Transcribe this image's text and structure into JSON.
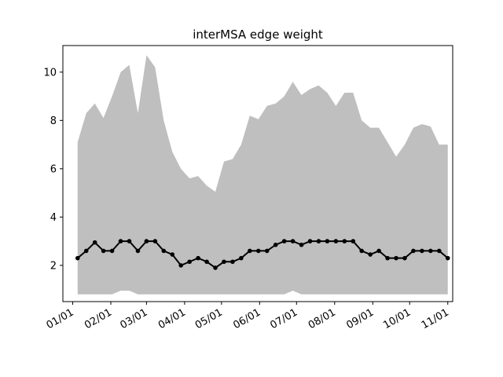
{
  "chart_data": {
    "type": "area",
    "title": "interMSA edge weight",
    "xlabel": "",
    "ylabel": "",
    "x_tick_labels": [
      "01/01",
      "02/01",
      "03/01",
      "04/01",
      "05/01",
      "06/01",
      "07/01",
      "08/01",
      "09/01",
      "10/01",
      "11/01"
    ],
    "x_tick_dates": [
      "2020-01-01",
      "2020-02-01",
      "2020-03-01",
      "2020-04-01",
      "2020-05-01",
      "2020-06-01",
      "2020-07-01",
      "2020-08-01",
      "2020-09-01",
      "2020-10-01",
      "2020-11-01"
    ],
    "xlim": [
      "2019-12-24",
      "2020-11-05"
    ],
    "y_ticks": [
      2,
      4,
      6,
      8,
      10
    ],
    "ylim": [
      0.5,
      11.1
    ],
    "grid": false,
    "x": [
      "2020-01-05",
      "2020-01-12",
      "2020-01-19",
      "2020-01-26",
      "2020-02-02",
      "2020-02-09",
      "2020-02-16",
      "2020-02-23",
      "2020-03-01",
      "2020-03-08",
      "2020-03-15",
      "2020-03-22",
      "2020-03-29",
      "2020-04-05",
      "2020-04-12",
      "2020-04-19",
      "2020-04-26",
      "2020-05-03",
      "2020-05-10",
      "2020-05-17",
      "2020-05-24",
      "2020-05-31",
      "2020-06-07",
      "2020-06-14",
      "2020-06-21",
      "2020-06-28",
      "2020-07-05",
      "2020-07-12",
      "2020-07-19",
      "2020-07-26",
      "2020-08-02",
      "2020-08-09",
      "2020-08-16",
      "2020-08-23",
      "2020-08-30",
      "2020-09-06",
      "2020-09-13",
      "2020-09-20",
      "2020-09-27",
      "2020-10-04",
      "2020-10-11",
      "2020-10-18",
      "2020-10-25",
      "2020-11-01"
    ],
    "series": [
      {
        "role": "range",
        "color": "#bfbfbf",
        "upper": [
          7.1,
          8.3,
          8.7,
          8.1,
          9.0,
          10.0,
          10.3,
          8.3,
          10.7,
          10.2,
          8.0,
          6.7,
          6.0,
          5.6,
          5.7,
          5.3,
          5.05,
          6.3,
          6.4,
          7.0,
          8.2,
          8.05,
          8.6,
          8.7,
          9.0,
          9.6,
          9.05,
          9.3,
          9.45,
          9.15,
          8.6,
          9.15,
          9.15,
          8.0,
          7.7,
          7.7,
          7.1,
          6.5,
          7.0,
          7.7,
          7.85,
          7.75,
          7.0,
          7.0
        ],
        "lower": [
          0.8,
          0.8,
          0.8,
          0.8,
          0.8,
          0.95,
          0.95,
          0.8,
          0.8,
          0.8,
          0.8,
          0.8,
          0.8,
          0.8,
          0.8,
          0.8,
          0.8,
          0.8,
          0.8,
          0.8,
          0.8,
          0.8,
          0.8,
          0.8,
          0.8,
          0.95,
          0.8,
          0.8,
          0.8,
          0.8,
          0.8,
          0.8,
          0.8,
          0.8,
          0.8,
          0.8,
          0.8,
          0.8,
          0.8,
          0.8,
          0.8,
          0.8,
          0.8,
          0.8
        ]
      },
      {
        "role": "line",
        "color": "#000000",
        "values": [
          2.3,
          2.6,
          2.95,
          2.6,
          2.6,
          3.0,
          3.0,
          2.6,
          3.0,
          3.0,
          2.6,
          2.45,
          2.0,
          2.15,
          2.3,
          2.15,
          1.9,
          2.15,
          2.15,
          2.3,
          2.6,
          2.6,
          2.6,
          2.85,
          3.0,
          3.0,
          2.85,
          3.0,
          3.0,
          3.0,
          3.0,
          3.0,
          3.0,
          2.6,
          2.45,
          2.6,
          2.3,
          2.3,
          2.3,
          2.6,
          2.6,
          2.6,
          2.6,
          2.3
        ]
      }
    ]
  }
}
